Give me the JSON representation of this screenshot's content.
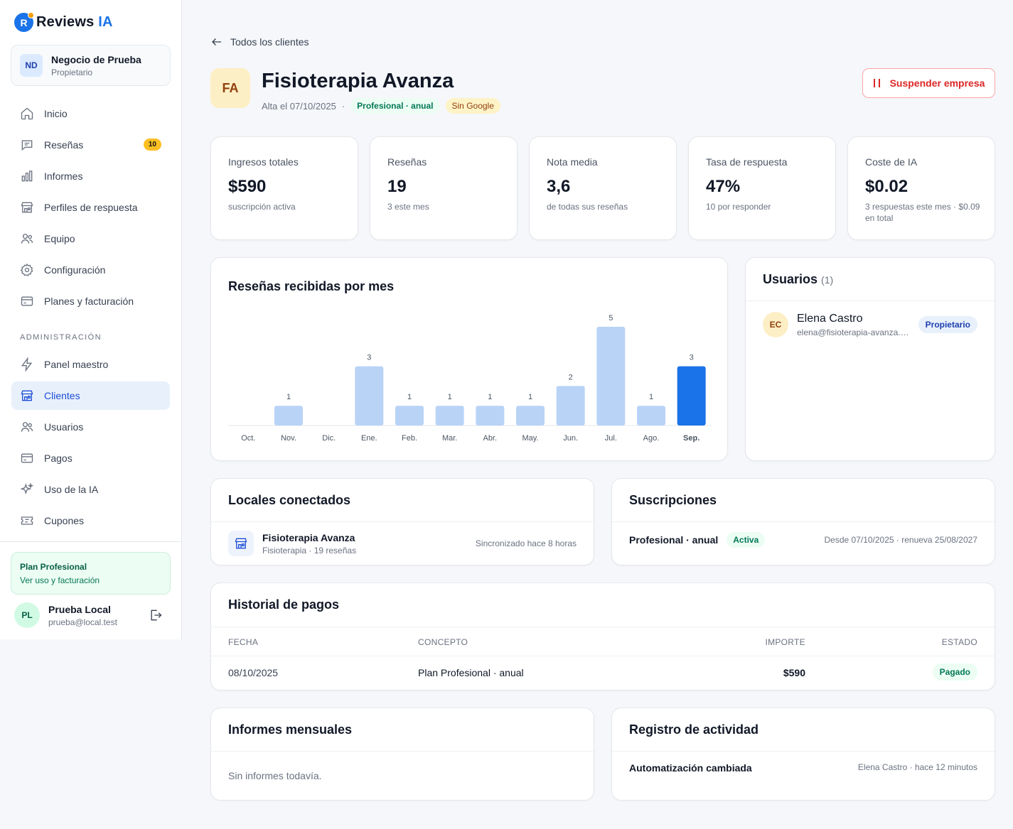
{
  "brand": {
    "name": "Reviews",
    "accent": "IA",
    "mark": "R"
  },
  "business": {
    "initials": "ND",
    "name": "Negocio de Prueba",
    "role": "Propietario"
  },
  "nav": {
    "items": [
      {
        "label": "Inicio",
        "icon": "home-icon"
      },
      {
        "label": "Reseñas",
        "icon": "message-icon",
        "badge": "10"
      },
      {
        "label": "Informes",
        "icon": "bar-chart-icon"
      },
      {
        "label": "Perfiles de respuesta",
        "icon": "store-icon"
      },
      {
        "label": "Equipo",
        "icon": "users-icon"
      },
      {
        "label": "Configuración",
        "icon": "gear-icon"
      },
      {
        "label": "Planes y facturación",
        "icon": "credit-card-icon"
      }
    ],
    "admin_label": "ADMINISTRACIÓN",
    "admin_items": [
      {
        "label": "Panel maestro",
        "icon": "bolt-icon"
      },
      {
        "label": "Clientes",
        "icon": "store-icon",
        "active": true
      },
      {
        "label": "Usuarios",
        "icon": "users-icon"
      },
      {
        "label": "Pagos",
        "icon": "credit-card-icon"
      },
      {
        "label": "Uso de la IA",
        "icon": "sparkles-icon"
      },
      {
        "label": "Cupones",
        "icon": "ticket-icon"
      }
    ]
  },
  "plan": {
    "title": "Plan Profesional",
    "link": "Ver uso y facturación"
  },
  "user": {
    "initials": "PL",
    "name": "Prueba Local",
    "email": "prueba@local.test"
  },
  "back": {
    "label": "Todos los clientes"
  },
  "client": {
    "initials": "FA",
    "name": "Fisioterapia Avanza",
    "since": "Alta el 07/10/2025",
    "separator": "·",
    "plan_pill": "Profesional · anual",
    "google_pill": "Sin Google"
  },
  "suspend_button": "Suspender empresa",
  "stats": [
    {
      "label": "Ingresos totales",
      "value": "$590",
      "sub": "suscripción activa"
    },
    {
      "label": "Reseñas",
      "value": "19",
      "sub": "3 este mes"
    },
    {
      "label": "Nota media",
      "value": "3,6",
      "sub": "de todas sus reseñas"
    },
    {
      "label": "Tasa de respuesta",
      "value": "47%",
      "sub": "10 por responder"
    },
    {
      "label": "Coste de IA",
      "value": "$0.02",
      "sub": "3 respuestas este mes · $0.09 en total"
    }
  ],
  "chart_title": "Reseñas recibidas por mes",
  "chart_data": {
    "type": "bar",
    "categories": [
      "Oct.",
      "Nov.",
      "Dic.",
      "Ene.",
      "Feb.",
      "Mar.",
      "Abr.",
      "May.",
      "Jun.",
      "Jul.",
      "Ago.",
      "Sep."
    ],
    "values": [
      0,
      1,
      0,
      3,
      1,
      1,
      1,
      1,
      2,
      5,
      1,
      3
    ],
    "highlight_index": 11,
    "colors": {
      "bar": "#b9d3f7",
      "highlight": "#1a73e8"
    },
    "grid": false
  },
  "users_card": {
    "title": "Usuarios",
    "count": "(1)",
    "items": [
      {
        "initials": "EC",
        "name": "Elena Castro",
        "email": "elena@fisioterapia-avanza.d...",
        "role": "Propietario"
      }
    ]
  },
  "locales": {
    "title": "Locales conectados",
    "items": [
      {
        "name": "Fisioterapia Avanza",
        "sub": "Fisioterapia · 19 reseñas",
        "sync": "Sincronizado hace 8 horas"
      }
    ]
  },
  "subscriptions": {
    "title": "Suscripciones",
    "items": [
      {
        "name": "Profesional · anual",
        "status": "Activa",
        "dates": "Desde 07/10/2025 · renueva 25/08/2027"
      }
    ]
  },
  "payments": {
    "title": "Historial de pagos",
    "columns": [
      "FECHA",
      "CONCEPTO",
      "IMPORTE",
      "ESTADO"
    ],
    "rows": [
      {
        "date": "08/10/2025",
        "concept": "Plan Profesional · anual",
        "amount": "$590",
        "status": "Pagado"
      }
    ]
  },
  "reports": {
    "title": "Informes mensuales",
    "empty": "Sin informes todavía."
  },
  "activity": {
    "title": "Registro de actividad",
    "items": [
      {
        "title": "Automatización cambiada",
        "meta": "Elena Castro · hace 12 minutos"
      }
    ]
  }
}
